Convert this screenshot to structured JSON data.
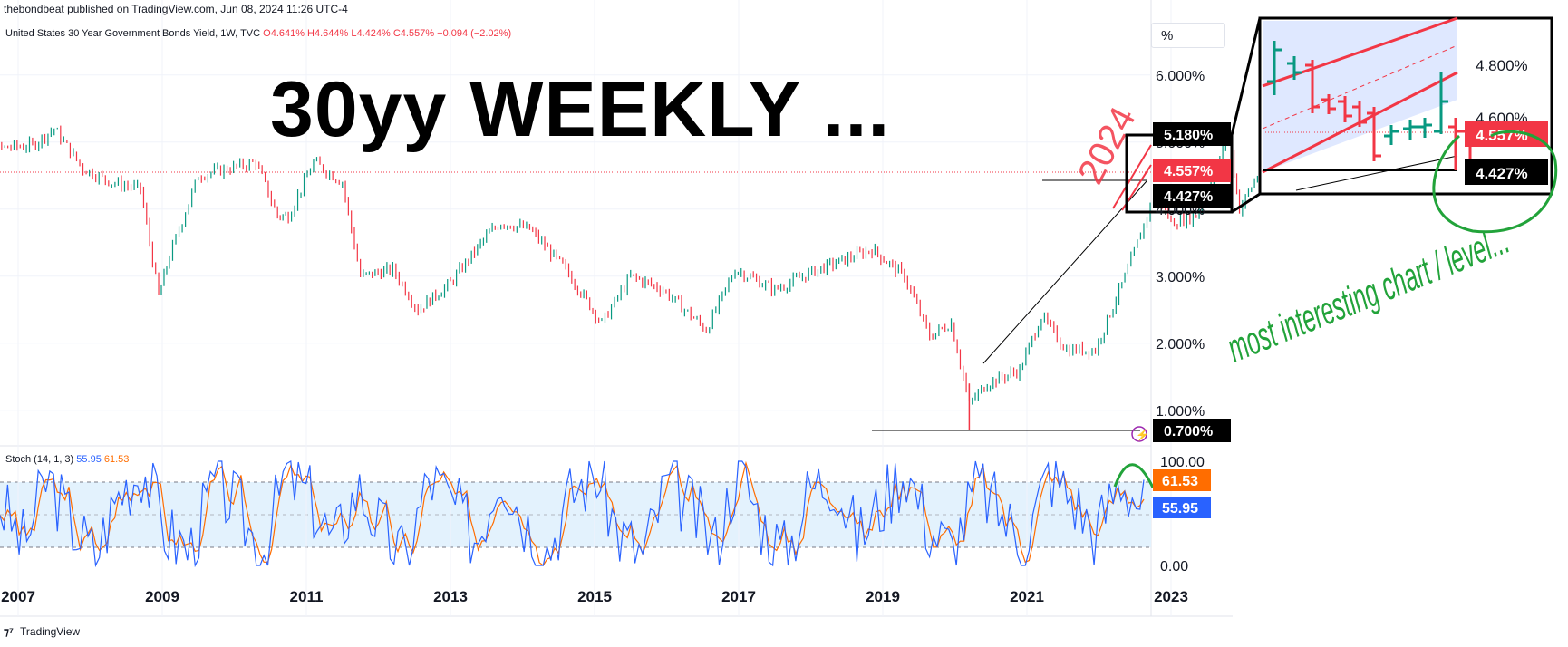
{
  "header": {
    "attribution": "thebondbeat published on TradingView.com, Jun 08, 2024 11:26 UTC-4",
    "symbol": "United States 30 Year Government Bonds Yield, 1W, TVC",
    "ohlc": "O4.641% H4.644% L4.424% C4.557% −0.094 (−2.02%)",
    "unit_button": "%"
  },
  "annotations": {
    "title": "30yy WEEKLY ...",
    "year_label": "2024",
    "handwritten_note": "most interesting chart / level..."
  },
  "price_axis": {
    "ticks": [
      "6.000%",
      "5.000%",
      "4.000%",
      "3.000%",
      "2.000%",
      "1.000%"
    ],
    "tick_values": [
      6,
      5,
      4,
      3,
      2,
      1
    ],
    "badges": [
      {
        "label": "5.180%",
        "value": 5.18,
        "color": "#000000"
      },
      {
        "label": "4.557%",
        "value": 4.557,
        "color": "#f23645"
      },
      {
        "label": "4.427%",
        "value": 4.427,
        "color": "#000000"
      },
      {
        "label": "0.700%",
        "value": 0.7,
        "color": "#000000"
      }
    ]
  },
  "stoch_axis": {
    "ticks": [
      "100.00",
      "0.00"
    ],
    "badges": [
      {
        "label": "61.53",
        "color": "#ff6d00"
      },
      {
        "label": "55.95",
        "color": "#2962ff"
      }
    ]
  },
  "stoch_legend": {
    "name": "Stoch (14, 1, 3)",
    "k_value": "55.95",
    "d_value": "61.53"
  },
  "inset": {
    "ticks": [
      "4.800%",
      "4.600%"
    ],
    "badges": [
      {
        "label": "4.557%",
        "color": "#f23645"
      },
      {
        "label": "4.427%",
        "color": "#000000"
      }
    ]
  },
  "time_axis": {
    "labels": [
      "2007",
      "2009",
      "2011",
      "2013",
      "2015",
      "2017",
      "2019",
      "2021",
      "2023"
    ]
  },
  "footer": {
    "brand": "TradingView"
  },
  "colors": {
    "up": "#089981",
    "down": "#f23645",
    "stoch_k": "#2962ff",
    "stoch_d": "#ff6d00",
    "note": "#22a33a"
  },
  "chart_data": {
    "type": "line",
    "title": "",
    "ylabel": "%",
    "ylim": [
      0.6,
      6.6
    ],
    "series": [
      {
        "name": "United States 30 Year Government Bonds Yield",
        "x": [
          2006.1,
          2006.6,
          2007.2,
          2007.5,
          2007.9,
          2008.3,
          2008.7,
          2008.95,
          2009.1,
          2009.5,
          2009.9,
          2010.3,
          2010.6,
          2010.75,
          2011.1,
          2011.5,
          2011.75,
          2012.2,
          2012.55,
          2013.0,
          2013.5,
          2013.7,
          2014.1,
          2014.6,
          2015.1,
          2015.5,
          2015.95,
          2016.55,
          2016.95,
          2017.5,
          2018.1,
          2018.85,
          2019.3,
          2019.65,
          2019.95,
          2020.2,
          2020.45,
          2020.9,
          2021.2,
          2021.55,
          2021.95,
          2022.4,
          2022.8,
          2023.0,
          2023.35,
          2023.8,
          2023.95,
          2024.2,
          2024.44
        ],
        "y": [
          4.85,
          4.9,
          4.95,
          5.2,
          4.6,
          4.4,
          4.3,
          2.7,
          3.3,
          4.5,
          4.6,
          4.7,
          3.9,
          3.9,
          4.7,
          4.4,
          3.0,
          3.1,
          2.5,
          2.9,
          3.6,
          3.8,
          3.7,
          3.1,
          2.3,
          3.0,
          2.8,
          2.2,
          3.1,
          2.8,
          3.1,
          3.4,
          3.0,
          2.1,
          2.3,
          1.1,
          1.4,
          1.6,
          2.4,
          1.9,
          1.9,
          3.1,
          4.3,
          3.8,
          3.9,
          5.1,
          4.0,
          4.5,
          4.557
        ]
      },
      {
        "name": "Stoch %K",
        "values": [
          60,
          20,
          85,
          40,
          10,
          70,
          95,
          30,
          15,
          80,
          55,
          10,
          90,
          65,
          20,
          75,
          35,
          5,
          85,
          60,
          25,
          95,
          45,
          15,
          70,
          90,
          30,
          10,
          80,
          55,
          20,
          95,
          40,
          10,
          75,
          85,
          25,
          60,
          95,
          35,
          15,
          80,
          50,
          20,
          90,
          65,
          30,
          85,
          55.95
        ]
      },
      {
        "name": "Stoch %D",
        "values": [
          55,
          35,
          60,
          50,
          30,
          50,
          80,
          60,
          30,
          55,
          65,
          35,
          60,
          75,
          45,
          55,
          50,
          25,
          55,
          70,
          40,
          70,
          65,
          35,
          45,
          80,
          55,
          25,
          55,
          65,
          40,
          70,
          65,
          30,
          50,
          80,
          50,
          50,
          85,
          60,
          30,
          55,
          60,
          35,
          65,
          75,
          45,
          65,
          61.53
        ]
      }
    ],
    "x_ticks": [
      "2007",
      "2009",
      "2011",
      "2013",
      "2015",
      "2017",
      "2019",
      "2021",
      "2023"
    ],
    "y_ticks": [
      "1.000%",
      "2.000%",
      "3.000%",
      "4.000%",
      "5.000%",
      "6.000%"
    ],
    "key_levels": [
      {
        "label": "5.180%",
        "value": 5.18
      },
      {
        "label": "4.557%",
        "value": 4.557
      },
      {
        "label": "4.427%",
        "value": 4.427
      },
      {
        "label": "0.700%",
        "value": 0.7
      }
    ],
    "grid": true,
    "legend": "top-left"
  }
}
